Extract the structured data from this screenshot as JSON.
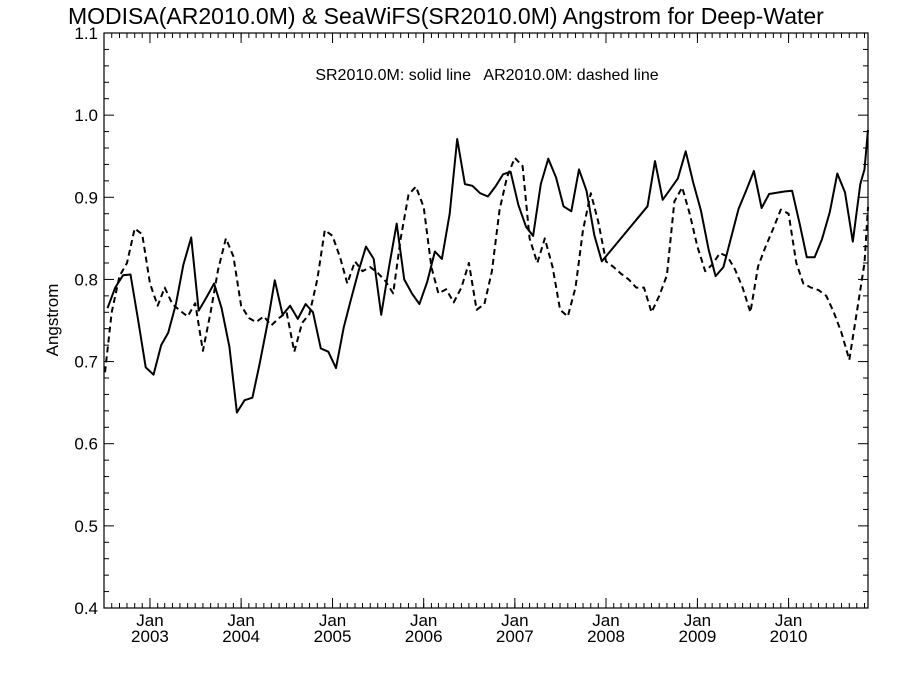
{
  "chart_data": {
    "type": "line",
    "title": "MODISA(AR2010.0M) & SeaWiFS(SR2010.0M)  Angstrom for Deep-Water",
    "annotation": "SR2010.0M: solid line   AR2010.0M: dashed line",
    "xlabel": "",
    "ylabel": "Angstrom",
    "xlim": [
      "2002-07-01",
      "2010-11-15"
    ],
    "ylim": [
      0.4,
      1.1
    ],
    "y_ticks": [
      "0.4",
      "0.5",
      "0.6",
      "0.7",
      "0.8",
      "0.9",
      "1.0",
      "1.1"
    ],
    "x_ticks": [
      {
        "month": "Jan",
        "year": "2003",
        "date": "2003-01-01"
      },
      {
        "month": "Jan",
        "year": "2004",
        "date": "2004-01-01"
      },
      {
        "month": "Jan",
        "year": "2005",
        "date": "2005-01-01"
      },
      {
        "month": "Jan",
        "year": "2006",
        "date": "2006-01-01"
      },
      {
        "month": "Jan",
        "year": "2007",
        "date": "2007-01-01"
      },
      {
        "month": "Jan",
        "year": "2008",
        "date": "2008-01-01"
      },
      {
        "month": "Jan",
        "year": "2009",
        "date": "2009-01-01"
      },
      {
        "month": "Jan",
        "year": "2010",
        "date": "2010-01-01"
      }
    ],
    "grid": false,
    "series": [
      {
        "name": "SR2010.0M",
        "style": "solid",
        "color": "#000000",
        "points": [
          [
            "2002-07-15",
            0.765
          ],
          [
            "2002-08-15",
            0.79
          ],
          [
            "2002-09-15",
            0.805
          ],
          [
            "2002-10-15",
            0.806
          ],
          [
            "2002-11-15",
            0.75
          ],
          [
            "2002-12-15",
            0.693
          ],
          [
            "2003-01-15",
            0.684
          ],
          [
            "2003-02-15",
            0.72
          ],
          [
            "2003-03-15",
            0.735
          ],
          [
            "2003-04-15",
            0.77
          ],
          [
            "2003-05-15",
            0.818
          ],
          [
            "2003-06-15",
            0.851
          ],
          [
            "2003-07-15",
            0.762
          ],
          [
            "2003-08-15",
            0.778
          ],
          [
            "2003-09-15",
            0.795
          ],
          [
            "2003-10-15",
            0.765
          ],
          [
            "2003-11-15",
            0.718
          ],
          [
            "2003-12-15",
            0.638
          ],
          [
            "2004-01-15",
            0.653
          ],
          [
            "2004-02-15",
            0.656
          ],
          [
            "2004-03-15",
            0.697
          ],
          [
            "2004-04-15",
            0.745
          ],
          [
            "2004-05-15",
            0.799
          ],
          [
            "2004-06-15",
            0.757
          ],
          [
            "2004-07-15",
            0.768
          ],
          [
            "2004-08-15",
            0.752
          ],
          [
            "2004-09-15",
            0.77
          ],
          [
            "2004-10-15",
            0.76
          ],
          [
            "2004-11-15",
            0.716
          ],
          [
            "2004-12-15",
            0.712
          ],
          [
            "2005-01-15",
            0.692
          ],
          [
            "2005-02-15",
            0.742
          ],
          [
            "2005-03-15",
            0.775
          ],
          [
            "2005-04-15",
            0.81
          ],
          [
            "2005-05-15",
            0.84
          ],
          [
            "2005-06-15",
            0.825
          ],
          [
            "2005-07-15",
            0.757
          ],
          [
            "2005-08-15",
            0.815
          ],
          [
            "2005-09-15",
            0.868
          ],
          [
            "2005-10-15",
            0.8
          ],
          [
            "2005-11-15",
            0.783
          ],
          [
            "2005-12-15",
            0.77
          ],
          [
            "2006-01-15",
            0.797
          ],
          [
            "2006-02-15",
            0.834
          ],
          [
            "2006-03-15",
            0.825
          ],
          [
            "2006-04-15",
            0.88
          ],
          [
            "2006-05-15",
            0.971
          ],
          [
            "2006-06-15",
            0.916
          ],
          [
            "2006-07-15",
            0.914
          ],
          [
            "2006-08-15",
            0.905
          ],
          [
            "2006-09-15",
            0.901
          ],
          [
            "2006-10-15",
            0.913
          ],
          [
            "2006-11-15",
            0.928
          ],
          [
            "2006-12-15",
            0.931
          ],
          [
            "2007-01-15",
            0.891
          ],
          [
            "2007-02-15",
            0.864
          ],
          [
            "2007-03-15",
            0.853
          ],
          [
            "2007-04-15",
            0.916
          ],
          [
            "2007-05-15",
            0.947
          ],
          [
            "2007-06-15",
            0.924
          ],
          [
            "2007-07-15",
            0.889
          ],
          [
            "2007-08-15",
            0.883
          ],
          [
            "2007-09-15",
            0.934
          ],
          [
            "2007-10-15",
            0.908
          ],
          [
            "2007-11-15",
            0.854
          ],
          [
            "2007-12-15",
            0.822
          ],
          [
            "2008-06-15",
            0.889
          ],
          [
            "2008-07-15",
            0.944
          ],
          [
            "2008-08-15",
            0.897
          ],
          [
            "2008-09-15",
            0.91
          ],
          [
            "2008-10-15",
            0.923
          ],
          [
            "2008-11-15",
            0.956
          ],
          [
            "2008-12-15",
            0.918
          ],
          [
            "2009-01-15",
            0.884
          ],
          [
            "2009-02-15",
            0.836
          ],
          [
            "2009-03-15",
            0.804
          ],
          [
            "2009-04-15",
            0.815
          ],
          [
            "2009-05-15",
            0.85
          ],
          [
            "2009-06-15",
            0.886
          ],
          [
            "2009-07-15",
            0.908
          ],
          [
            "2009-08-15",
            0.932
          ],
          [
            "2009-09-15",
            0.887
          ],
          [
            "2009-10-15",
            0.904
          ],
          [
            "2009-12-15",
            0.907
          ],
          [
            "2010-01-15",
            0.908
          ],
          [
            "2010-02-15",
            0.867
          ],
          [
            "2010-03-15",
            0.827
          ],
          [
            "2010-04-15",
            0.827
          ],
          [
            "2010-05-15",
            0.849
          ],
          [
            "2010-06-15",
            0.882
          ],
          [
            "2010-07-15",
            0.929
          ],
          [
            "2010-08-15",
            0.906
          ],
          [
            "2010-09-15",
            0.846
          ],
          [
            "2010-10-15",
            0.916
          ],
          [
            "2010-11-01",
            0.934
          ],
          [
            "2010-11-15",
            0.982
          ]
        ]
      },
      {
        "name": "AR2010.0M",
        "style": "dashed",
        "color": "#000000",
        "points": [
          [
            "2002-07-05",
            0.687
          ],
          [
            "2002-08-01",
            0.76
          ],
          [
            "2002-09-01",
            0.804
          ],
          [
            "2002-10-01",
            0.82
          ],
          [
            "2002-11-01",
            0.862
          ],
          [
            "2002-12-01",
            0.855
          ],
          [
            "2003-01-01",
            0.795
          ],
          [
            "2003-02-01",
            0.768
          ],
          [
            "2003-03-01",
            0.79
          ],
          [
            "2003-04-01",
            0.77
          ],
          [
            "2003-05-01",
            0.762
          ],
          [
            "2003-06-01",
            0.755
          ],
          [
            "2003-07-01",
            0.771
          ],
          [
            "2003-08-01",
            0.713
          ],
          [
            "2003-09-01",
            0.76
          ],
          [
            "2003-10-01",
            0.812
          ],
          [
            "2003-11-01",
            0.85
          ],
          [
            "2003-12-01",
            0.828
          ],
          [
            "2004-01-01",
            0.768
          ],
          [
            "2004-02-01",
            0.753
          ],
          [
            "2004-03-01",
            0.748
          ],
          [
            "2004-04-01",
            0.755
          ],
          [
            "2004-05-01",
            0.744
          ],
          [
            "2004-06-01",
            0.753
          ],
          [
            "2004-07-01",
            0.76
          ],
          [
            "2004-08-01",
            0.712
          ],
          [
            "2004-09-01",
            0.747
          ],
          [
            "2004-10-01",
            0.758
          ],
          [
            "2004-11-01",
            0.8
          ],
          [
            "2004-12-01",
            0.86
          ],
          [
            "2005-01-01",
            0.853
          ],
          [
            "2005-02-01",
            0.826
          ],
          [
            "2005-03-01",
            0.795
          ],
          [
            "2005-04-01",
            0.822
          ],
          [
            "2005-05-01",
            0.81
          ],
          [
            "2005-06-01",
            0.815
          ],
          [
            "2005-07-01",
            0.808
          ],
          [
            "2005-08-01",
            0.798
          ],
          [
            "2005-09-01",
            0.783
          ],
          [
            "2005-10-01",
            0.85
          ],
          [
            "2005-11-01",
            0.903
          ],
          [
            "2005-12-01",
            0.913
          ],
          [
            "2006-01-01",
            0.888
          ],
          [
            "2006-02-01",
            0.815
          ],
          [
            "2006-03-01",
            0.783
          ],
          [
            "2006-04-01",
            0.788
          ],
          [
            "2006-05-01",
            0.772
          ],
          [
            "2006-06-01",
            0.79
          ],
          [
            "2006-07-01",
            0.82
          ],
          [
            "2006-08-01",
            0.763
          ],
          [
            "2006-09-01",
            0.77
          ],
          [
            "2006-10-01",
            0.81
          ],
          [
            "2006-11-01",
            0.885
          ],
          [
            "2006-12-01",
            0.925
          ],
          [
            "2007-01-01",
            0.948
          ],
          [
            "2007-02-01",
            0.938
          ],
          [
            "2007-03-01",
            0.85
          ],
          [
            "2007-04-01",
            0.82
          ],
          [
            "2007-05-01",
            0.85
          ],
          [
            "2007-06-01",
            0.815
          ],
          [
            "2007-07-01",
            0.763
          ],
          [
            "2007-08-01",
            0.755
          ],
          [
            "2007-09-01",
            0.79
          ],
          [
            "2007-10-01",
            0.86
          ],
          [
            "2007-11-01",
            0.905
          ],
          [
            "2007-12-01",
            0.87
          ],
          [
            "2008-01-01",
            0.822
          ],
          [
            "2008-02-01",
            0.815
          ],
          [
            "2008-03-01",
            0.807
          ],
          [
            "2008-04-01",
            0.8
          ],
          [
            "2008-05-01",
            0.79
          ],
          [
            "2008-06-01",
            0.79
          ],
          [
            "2008-07-01",
            0.76
          ],
          [
            "2008-08-01",
            0.78
          ],
          [
            "2008-09-01",
            0.805
          ],
          [
            "2008-10-01",
            0.895
          ],
          [
            "2008-11-01",
            0.912
          ],
          [
            "2008-12-01",
            0.88
          ],
          [
            "2009-01-01",
            0.84
          ],
          [
            "2009-02-01",
            0.81
          ],
          [
            "2009-03-01",
            0.818
          ],
          [
            "2009-04-01",
            0.832
          ],
          [
            "2009-05-01",
            0.828
          ],
          [
            "2009-06-01",
            0.812
          ],
          [
            "2009-07-01",
            0.79
          ],
          [
            "2009-08-01",
            0.76
          ],
          [
            "2009-09-01",
            0.816
          ],
          [
            "2009-10-01",
            0.84
          ],
          [
            "2009-11-01",
            0.862
          ],
          [
            "2009-12-01",
            0.885
          ],
          [
            "2010-01-01",
            0.88
          ],
          [
            "2010-02-01",
            0.82
          ],
          [
            "2010-03-01",
            0.795
          ],
          [
            "2010-04-01",
            0.79
          ],
          [
            "2010-05-01",
            0.787
          ],
          [
            "2010-06-01",
            0.78
          ],
          [
            "2010-07-01",
            0.76
          ],
          [
            "2010-08-01",
            0.735
          ],
          [
            "2010-09-01",
            0.702
          ],
          [
            "2010-10-01",
            0.76
          ],
          [
            "2010-11-01",
            0.82
          ],
          [
            "2010-11-15",
            0.888
          ]
        ]
      }
    ]
  }
}
